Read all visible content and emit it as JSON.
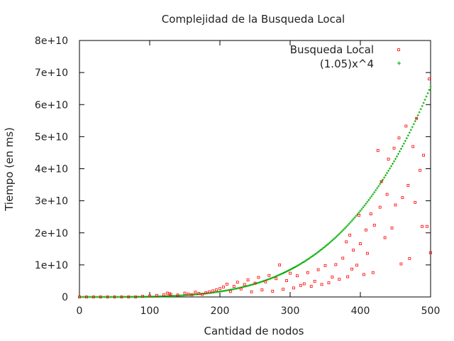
{
  "chart_data": {
    "type": "scatter",
    "title": "Complejidad de la Busqueda Local",
    "xlabel": "Cantidad de nodos",
    "ylabel": "Tiempo (en ms)",
    "xlim": [
      0,
      500
    ],
    "ylim": [
      0,
      80000000000
    ],
    "x_ticks": [
      "0",
      "100",
      "200",
      "300",
      "400",
      "500"
    ],
    "y_ticks": [
      "0",
      "1e+10",
      "2e+10",
      "3e+10",
      "4e+10",
      "5e+10",
      "6e+10",
      "7e+10",
      "8e+10"
    ],
    "grid": false,
    "legend_position": "top-right",
    "series": [
      {
        "name": "Busqueda Local",
        "marker": "square",
        "color": "#ff0000",
        "x": [
          0,
          10,
          20,
          30,
          40,
          50,
          60,
          70,
          80,
          90,
          100,
          110,
          120,
          125,
          128,
          130,
          140,
          150,
          155,
          160,
          165,
          170,
          175,
          180,
          185,
          190,
          195,
          200,
          205,
          210,
          215,
          220,
          225,
          230,
          235,
          240,
          245,
          250,
          255,
          260,
          265,
          270,
          275,
          280,
          285,
          290,
          295,
          300,
          305,
          310,
          315,
          320,
          325,
          330,
          335,
          340,
          345,
          350,
          355,
          360,
          365,
          370,
          375,
          380,
          382,
          385,
          388,
          390,
          395,
          398,
          400,
          405,
          408,
          410,
          415,
          418,
          420,
          425,
          428,
          430,
          435,
          438,
          440,
          445,
          448,
          450,
          455,
          458,
          460,
          465,
          468,
          470,
          475,
          478,
          480,
          485,
          488,
          490,
          495,
          498,
          500
        ],
        "y": [
          0,
          0,
          0,
          0,
          0,
          0,
          0,
          0,
          0,
          200000000,
          300000000,
          500000000,
          700000000,
          1200000000,
          1000000000,
          800000000,
          600000000,
          1200000000,
          900000000,
          700000000,
          1500000000,
          1100000000,
          800000000,
          1300000000,
          1600000000,
          1900000000,
          2200000000,
          2600000000,
          3100000000,
          4000000000,
          1700000000,
          3300000000,
          4600000000,
          2500000000,
          3900000000,
          5300000000,
          1600000000,
          4300000000,
          6100000000,
          2200000000,
          4700000000,
          6700000000,
          1800000000,
          5700000000,
          10000000000,
          2400000000,
          5100000000,
          7400000000,
          2800000000,
          6600000000,
          3600000000,
          4100000000,
          7600000000,
          3300000000,
          4900000000,
          8500000000,
          3900000000,
          9800000000,
          4400000000,
          6200000000,
          10100000000,
          5500000000,
          12100000000,
          17200000000,
          6300000000,
          19300000000,
          8700000000,
          14600000000,
          9900000000,
          25500000000,
          16600000000,
          7000000000,
          20900000000,
          13600000000,
          25900000000,
          7600000000,
          22400000000,
          45700000000,
          28000000000,
          36000000000,
          18500000000,
          32000000000,
          43000000000,
          21500000000,
          46400000000,
          28700000000,
          49600000000,
          10300000000,
          31000000000,
          53300000000,
          34800000000,
          12000000000,
          46900000000,
          29500000000,
          55700000000,
          39500000000,
          22000000000,
          44200000000,
          22000000000,
          68000000000,
          13800000000
        ]
      },
      {
        "name": "(1.05)x^4",
        "marker": "plus",
        "color": "#00aa00",
        "formula": "1.05*x^4",
        "x_range": [
          0,
          500
        ],
        "x_step": 2
      }
    ]
  }
}
